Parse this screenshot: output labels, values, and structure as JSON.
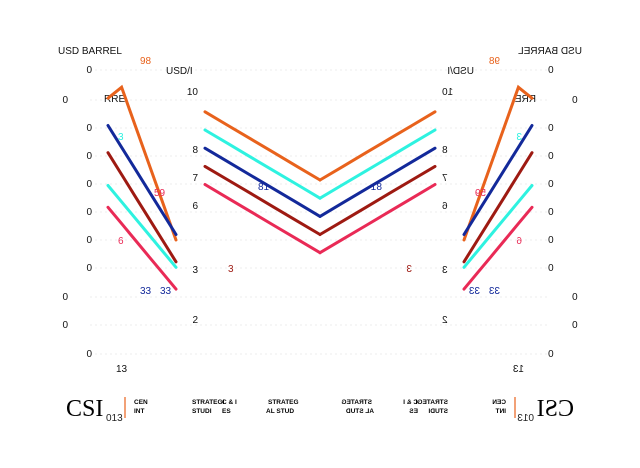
{
  "colors": {
    "orange": "#e8621c",
    "cyan": "#2ef2e0",
    "navy": "#13299a",
    "darkred": "#9e1a12",
    "crimson": "#e92a56",
    "grid": "#d9d9d9",
    "text": "#111111",
    "brand": "#e8621c"
  },
  "footer": {
    "logo": "CSI",
    "year": "013",
    "org_fragments": [
      "CEN",
      "INT",
      "STRATEGI",
      "C & I",
      "STUDI",
      "ES",
      "STRATEG",
      "AL STUD"
    ]
  },
  "chart_data": [
    {
      "type": "line",
      "title": "",
      "unit_label": "USD BARREL",
      "ylabel_fragment": "RRE",
      "ytick_labels": [
        "0",
        "0",
        "0",
        "0",
        "0",
        "0",
        "0",
        "0",
        "0",
        "0",
        "0"
      ],
      "data_labels": [
        "98",
        "3",
        "59",
        "6",
        "33",
        "13"
      ],
      "series": [
        {
          "color_key": "orange",
          "values": [
            96,
            100,
            86,
            72,
            58,
            44
          ]
        },
        {
          "color_key": "navy",
          "values": [
            86,
            78,
            70,
            62,
            54,
            46
          ]
        },
        {
          "color_key": "darkred",
          "values": [
            76,
            68,
            60,
            52,
            44,
            36
          ]
        },
        {
          "color_key": "cyan",
          "values": [
            64,
            58,
            52,
            46,
            40,
            34
          ]
        },
        {
          "color_key": "crimson",
          "values": [
            56,
            50,
            44,
            38,
            32,
            26
          ]
        }
      ]
    },
    {
      "type": "line",
      "title": "",
      "unit_label": "USD/I",
      "ytick_labels": [
        "10",
        "8",
        "7",
        "6",
        "3",
        "2"
      ],
      "data_labels": [
        "81",
        "33",
        "3"
      ],
      "series": [
        {
          "color_key": "orange",
          "values": [
            9.6,
            9.0,
            8.4,
            7.8,
            7.2,
            6.6
          ]
        },
        {
          "color_key": "cyan",
          "values": [
            8.8,
            8.2,
            7.6,
            7.0,
            6.4,
            5.8
          ]
        },
        {
          "color_key": "navy",
          "values": [
            8.0,
            7.4,
            6.8,
            6.2,
            5.6,
            5.0
          ]
        },
        {
          "color_key": "darkred",
          "values": [
            7.2,
            6.6,
            6.0,
            5.4,
            4.8,
            4.2
          ]
        },
        {
          "color_key": "crimson",
          "values": [
            6.4,
            5.8,
            5.2,
            4.6,
            4.0,
            3.4
          ]
        }
      ]
    }
  ]
}
